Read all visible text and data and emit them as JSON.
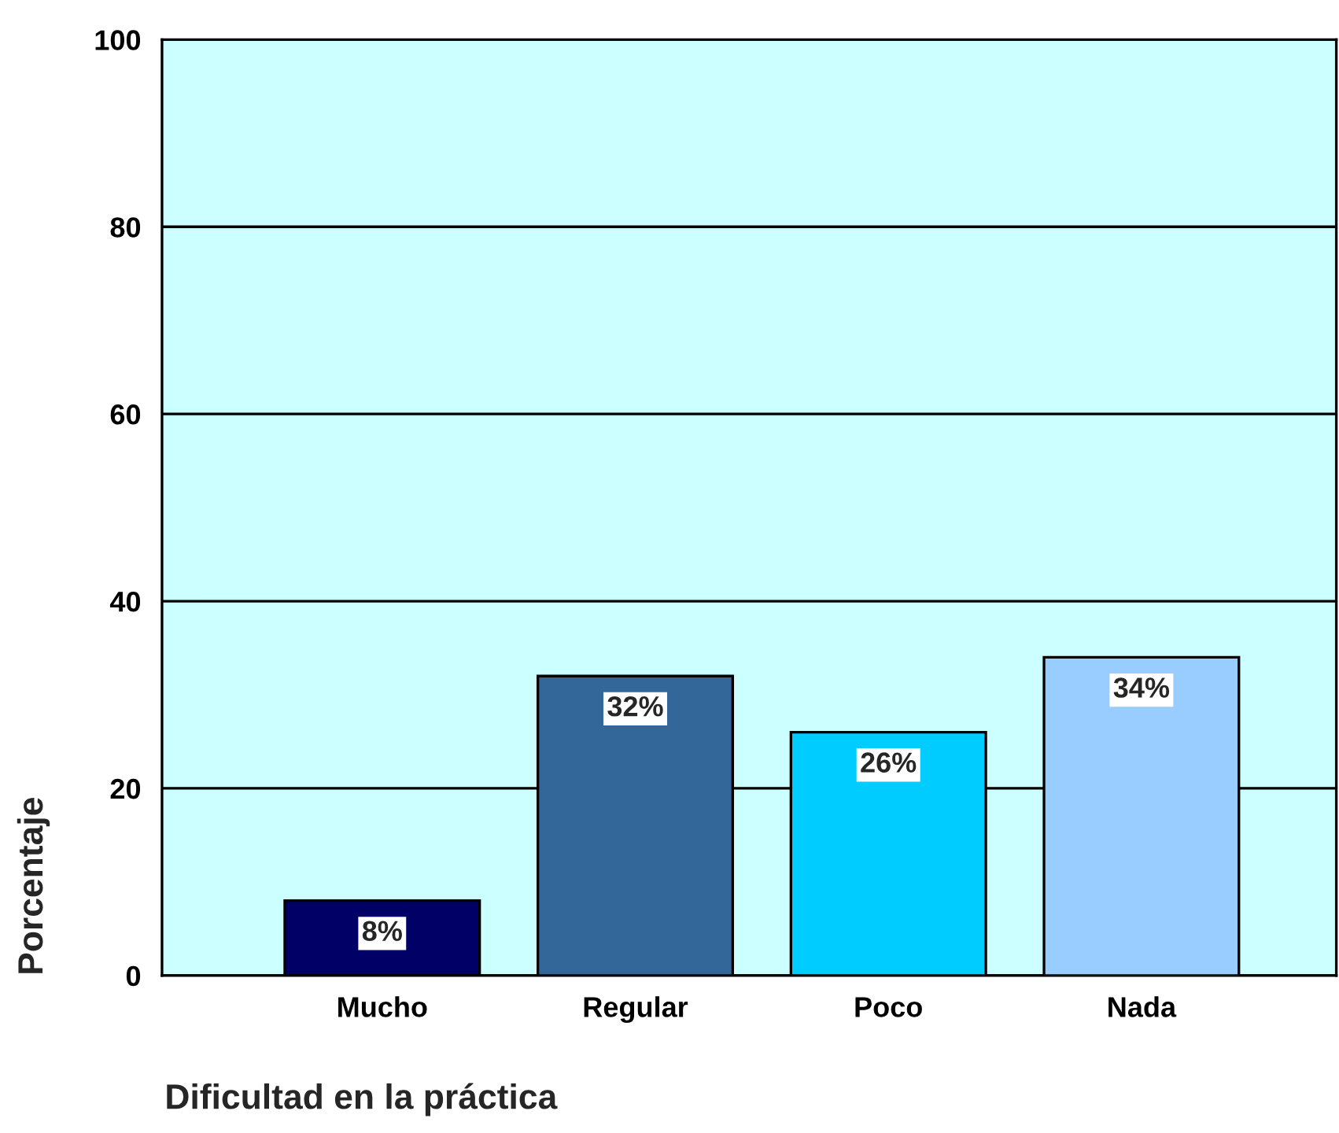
{
  "chart_data": {
    "type": "bar",
    "xlabel": "Dificultad en la práctica",
    "ylabel": "Porcentaje",
    "categories": [
      "Mucho",
      "Regular",
      "Poco",
      "Nada"
    ],
    "values": [
      8,
      32,
      26,
      34
    ],
    "colors": [
      "#000066",
      "#336699",
      "#00ccff",
      "#99ccff"
    ],
    "value_labels": [
      "8%",
      "32%",
      "26%",
      "34%"
    ],
    "ylim": [
      0,
      100
    ],
    "yticks": [
      0,
      20,
      40,
      60,
      80,
      100
    ],
    "grid": "y",
    "legend": false
  }
}
